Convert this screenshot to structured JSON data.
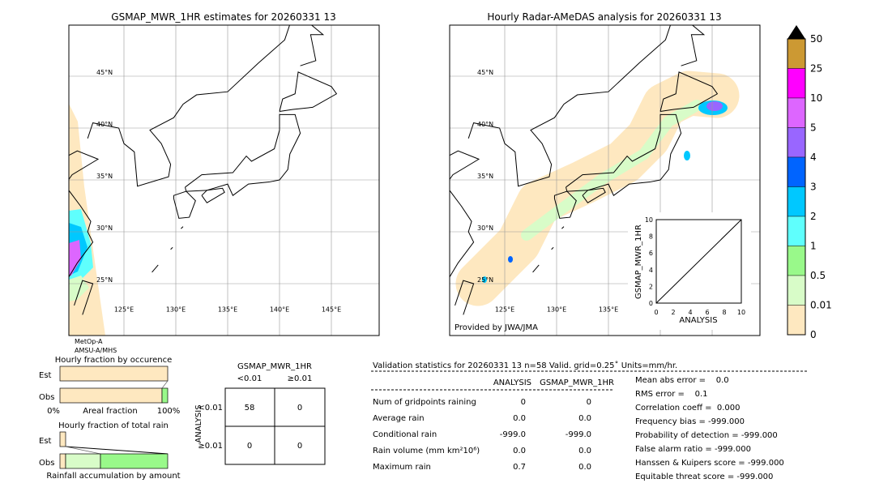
{
  "left_map": {
    "title": "GSMAP_MWR_1HR estimates for 20260331 13",
    "sensor_line1": "MetOp-A",
    "sensor_line2": "AMSU-A/MHS",
    "lat_labels": [
      "45°N",
      "40°N",
      "35°N",
      "30°N",
      "25°N"
    ],
    "lon_labels": [
      "125°E",
      "130°E",
      "135°E",
      "140°E",
      "145°E"
    ]
  },
  "right_map": {
    "title": "Hourly Radar-AMeDAS analysis for 20260331 13",
    "credit": "Provided by JWA/JMA",
    "lat_labels": [
      "45°N",
      "40°N",
      "35°N",
      "30°N",
      "25°N"
    ],
    "lon_labels": [
      "125°E",
      "130°E",
      "135°E"
    ]
  },
  "colorbar": {
    "labels": [
      "50",
      "25",
      "10",
      "5",
      "4",
      "3",
      "2",
      "1",
      "0.5",
      "0.01",
      "0"
    ],
    "colors": [
      "#cc9933",
      "#ff00ff",
      "#dd66ff",
      "#9966ff",
      "#0064ff",
      "#00c8ff",
      "#5ffffd",
      "#99f98a",
      "#d8fcc8",
      "#fee8c0"
    ]
  },
  "chart_data": [
    {
      "type": "scatter",
      "xlabel": "ANALYSIS",
      "ylabel": "GSMAP_MWR_1HR",
      "xlim": [
        0,
        10
      ],
      "ylim": [
        0,
        10
      ],
      "ticks": [
        "0",
        "2",
        "4",
        "6",
        "8",
        "10"
      ],
      "diagonal": true
    },
    {
      "type": "bar",
      "title": "Hourly fraction by occurence",
      "categories": [
        "Est",
        "Obs"
      ],
      "xlabel": "Areal fraction",
      "x_ticks": [
        "0%",
        "100%"
      ],
      "est": [
        1.0
      ],
      "obs": [
        0.97,
        0.03
      ]
    },
    {
      "type": "bar",
      "title": "Hourly fraction of total rain",
      "categories": [
        "Est",
        "Obs"
      ],
      "xlabel": "Rainfall accumulation by amount",
      "est": [
        0.05
      ],
      "obs": [
        0.05,
        0.42,
        0.53
      ]
    },
    {
      "type": "table",
      "title": "GSMAP_MWR_1HR",
      "col_headers": [
        "<0.01",
        "≥0.01"
      ],
      "row_label": "ANALYSIS",
      "row_headers": [
        "<0.01",
        "≥0.01"
      ],
      "cells": [
        [
          "58",
          "0"
        ],
        [
          "0",
          "0"
        ]
      ]
    }
  ],
  "stats": {
    "header": "Validation statistics for 20260331 13  n=58 Valid. grid=0.25˚ Units=mm/hr.",
    "col1": "ANALYSIS",
    "col2": "GSMAP_MWR_1HR",
    "rows": [
      [
        "Num of gridpoints raining",
        "0",
        "0"
      ],
      [
        "Average rain",
        "0.0",
        "0.0"
      ],
      [
        "Conditional rain",
        "-999.0",
        "-999.0"
      ],
      [
        "Rain volume (mm km²10⁶)",
        "0.0",
        "0.0"
      ],
      [
        "Maximum rain",
        "0.7",
        "0.0"
      ]
    ],
    "scores": [
      "Mean abs error =    0.0",
      "RMS error =    0.1",
      "Correlation coeff =  0.000",
      "Frequency bias = -999.000",
      "Probability of detection = -999.000",
      "False alarm ratio = -999.000",
      "Hanssen & Kuipers score = -999.000",
      "Equitable threat score = -999.000"
    ]
  }
}
